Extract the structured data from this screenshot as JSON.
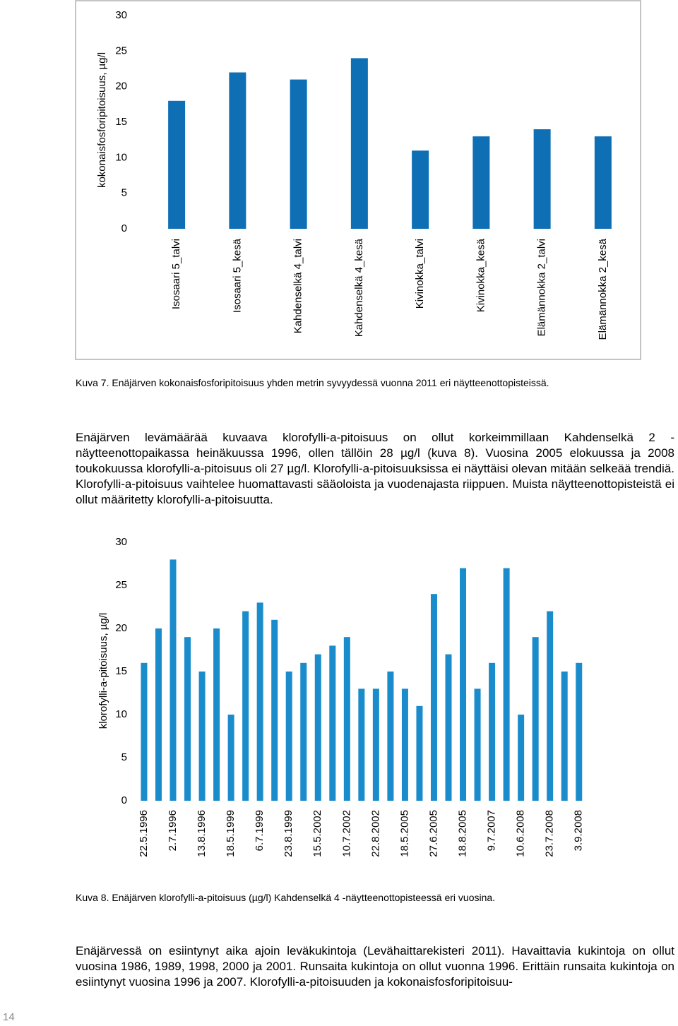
{
  "chart_data": [
    {
      "type": "bar",
      "y_label": "kokonaisfosforipitoisuus, µg/l",
      "categories": [
        "Isosaari 5_talvi",
        "Isosaari 5_kesä",
        "Kahdenselkä 4_talvi",
        "Kahdenselkä 4_kesä",
        "Kivinokka_talvi",
        "Kivinokka_kesä",
        "Elämännokka 2_talvi",
        "Elämännokka 2_kesä"
      ],
      "values": [
        18,
        22,
        21,
        24,
        11,
        13,
        14,
        13
      ],
      "color": "#0e6fb5",
      "ylim": [
        0,
        30
      ],
      "yticks": [
        0,
        5,
        10,
        15,
        20,
        25,
        30
      ],
      "frame": true
    },
    {
      "type": "bar",
      "y_label": "klorofylli-a-pitoisuus, µg/l",
      "categories": [
        "22.5.1996",
        null,
        "2.7.1996",
        null,
        "13.8.1996",
        null,
        "18.5.1999",
        null,
        "6.7.1999",
        null,
        "23.8.1999",
        null,
        "15.5.2002",
        null,
        "10.7.2002",
        null,
        "22.8.2002",
        null,
        "18.5.2005",
        null,
        "27.6.2005",
        null,
        "18.8.2005",
        null,
        "9.7.2007",
        null,
        "10.6.2008",
        null,
        "23.7.2008",
        null,
        "3.9.2008"
      ],
      "values": [
        16,
        20,
        28,
        19,
        15,
        20,
        10,
        22,
        23,
        21,
        15,
        16,
        17,
        18,
        19,
        13,
        13,
        15,
        13,
        11,
        24,
        17,
        27,
        13,
        16,
        27,
        10,
        19,
        22,
        15,
        16
      ],
      "color": "#1a8ccb",
      "ylim": [
        0,
        30
      ],
      "yticks": [
        0,
        5,
        10,
        15,
        20,
        25,
        30
      ],
      "frame": false
    }
  ],
  "captions": [
    "Kuva 7. Enäjärven kokonaisfosforipitoisuus yhden metrin syvyydessä vuonna 2011 eri näytteenottopisteissä.",
    "Kuva 8. Enäjärven klorofylli-a-pitoisuus (µg/l) Kahdenselkä 4 -näytteenottopisteessä eri vuosina."
  ],
  "paragraphs": [
    "Enäjärven levämäärää kuvaava klorofylli-a-pitoisuus on ollut korkeimmillaan Kahdenselkä 2 -näytteenottopaikassa heinäkuussa 1996, ollen tällöin 28 µg/l (kuva 8). Vuosina 2005 elokuussa ja 2008 toukokuussa klorofylli-a-pitoisuus oli 27 µg/l. Klorofylli-a-pitoisuuksissa ei näyttäisi olevan mitään selkeää trendiä. Klorofylli-a-pitoisuus vaihtelee huomattavasti sääoloista ja vuodenajasta riippuen. Muista näytteenottopisteistä ei ollut määritetty klorofylli-a-pitoisuutta.",
    "Enäjärvessä on esiintynyt aika ajoin leväkukintoja (Levähaittarekisteri 2011). Havaittavia kukintoja on ollut vuosina 1986, 1989, 1998, 2000 ja 2001. Runsaita kukintoja on ollut vuonna 1996. Erittäin runsaita kukintoja on esiintynyt vuosina 1996 ja 2007. Klorofylli-a-pitoisuuden ja kokonaisfosforipitoisuu-"
  ],
  "page_number": "14"
}
